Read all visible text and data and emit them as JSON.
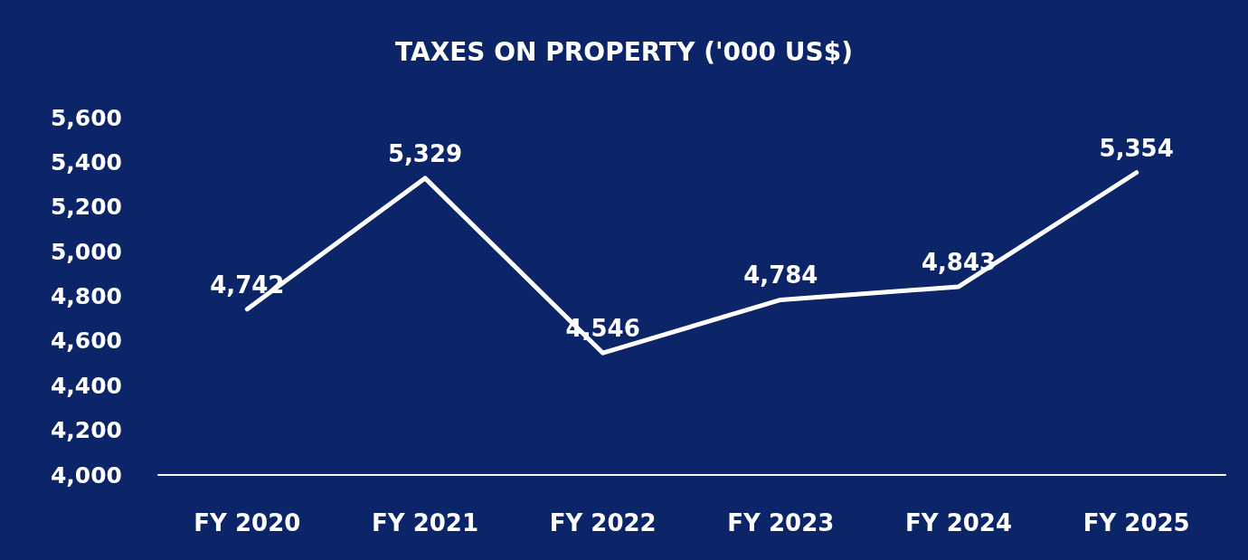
{
  "chart_data": {
    "type": "line",
    "title": "TAXES ON PROPERTY ('000 US$)",
    "categories": [
      "FY 2020",
      "FY 2021",
      "FY 2022",
      "FY 2023",
      "FY 2024",
      "FY 2025"
    ],
    "series": [
      {
        "color": "#ffffff",
        "values": [
          4742,
          5329,
          4546,
          4784,
          4843,
          5354
        ],
        "value_labels": [
          "4,742",
          "5,329",
          "4,546",
          "4,784",
          "4,843",
          "5,354"
        ]
      }
    ],
    "ylim": [
      4000,
      5600
    ],
    "yticks": [
      {
        "value": 4000,
        "label": "4,000"
      },
      {
        "value": 4200,
        "label": "4,200"
      },
      {
        "value": 4400,
        "label": "4,400"
      },
      {
        "value": 4600,
        "label": "4,600"
      },
      {
        "value": 4800,
        "label": "4,800"
      },
      {
        "value": 5000,
        "label": "5,000"
      },
      {
        "value": 5200,
        "label": "5,200"
      },
      {
        "value": 5400,
        "label": "5,400"
      },
      {
        "value": 5600,
        "label": "5,600"
      }
    ],
    "grid": false,
    "marker": "none",
    "line_style": "solid"
  }
}
